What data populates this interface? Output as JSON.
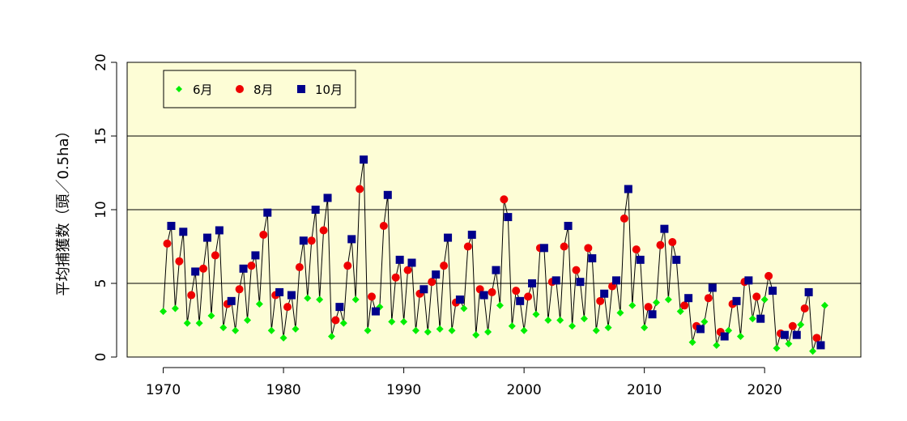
{
  "chart_data": {
    "type": "line",
    "title": "",
    "xlabel": "",
    "ylabel": "平均捕獲数（頭／0.5ha）",
    "xlim": [
      1967,
      2028
    ],
    "ylim": [
      0,
      20
    ],
    "xticks": [
      1970,
      1980,
      1990,
      2000,
      2010,
      2020
    ],
    "xtick_labels": [
      "1970",
      "1980",
      "1990",
      "2000",
      "2010",
      "2020"
    ],
    "yticks": [
      0,
      5,
      10,
      15,
      20
    ],
    "ytick_labels": [
      "0",
      "5",
      "10",
      "15",
      "20"
    ],
    "grid": "horizontal",
    "legend_position": "top-left",
    "colors": {
      "plot_background": "#fdfdd6",
      "june": "#00ee00",
      "august": "#ee0000",
      "october": "#00008b",
      "line": "#000000"
    },
    "series": [
      {
        "name": "6月",
        "marker": "diamond",
        "x": [
          1970,
          1971,
          1972,
          1973,
          1974,
          1975,
          1976,
          1977,
          1978,
          1979,
          1980,
          1981,
          1982,
          1983,
          1984,
          1985,
          1986,
          1987,
          1988,
          1989,
          1990,
          1991,
          1992,
          1993,
          1994,
          1995,
          1996,
          1997,
          1998,
          1999,
          2000,
          2001,
          2002,
          2003,
          2004,
          2005,
          2006,
          2007,
          2008,
          2009,
          2010,
          2011,
          2012,
          2013,
          2014,
          2015,
          2016,
          2017,
          2018,
          2019,
          2020,
          2021,
          2022,
          2023,
          2024,
          2025
        ],
        "values": [
          3.1,
          3.3,
          2.3,
          2.3,
          2.8,
          2.0,
          1.8,
          2.5,
          3.6,
          1.8,
          1.3,
          1.9,
          4.0,
          3.9,
          1.4,
          2.3,
          3.9,
          1.8,
          3.4,
          2.4,
          2.4,
          1.8,
          1.7,
          1.9,
          1.8,
          3.3,
          1.5,
          1.7,
          3.5,
          2.1,
          1.8,
          2.9,
          2.5,
          2.5,
          2.1,
          2.6,
          1.8,
          2.0,
          3.0,
          3.5,
          2.0,
          3.7,
          3.9,
          3.1,
          1.0,
          2.4,
          0.8,
          1.8,
          1.4,
          2.6,
          3.9,
          0.6,
          0.9,
          2.2,
          0.4,
          3.5
        ]
      },
      {
        "name": "8月",
        "marker": "circle",
        "x": [
          1970,
          1971,
          1972,
          1973,
          1974,
          1975,
          1976,
          1977,
          1978,
          1979,
          1980,
          1981,
          1982,
          1983,
          1984,
          1985,
          1986,
          1987,
          1988,
          1989,
          1990,
          1991,
          1992,
          1993,
          1994,
          1995,
          1996,
          1997,
          1998,
          1999,
          2000,
          2001,
          2002,
          2003,
          2004,
          2005,
          2006,
          2007,
          2008,
          2009,
          2010,
          2011,
          2012,
          2013,
          2014,
          2015,
          2016,
          2017,
          2018,
          2019,
          2020,
          2021,
          2022,
          2023,
          2024
        ],
        "values": [
          7.7,
          6.5,
          4.2,
          6.0,
          6.9,
          3.6,
          4.6,
          6.2,
          8.3,
          4.2,
          3.4,
          6.1,
          7.9,
          8.6,
          2.5,
          6.2,
          11.4,
          4.1,
          8.9,
          5.4,
          5.9,
          4.3,
          5.1,
          6.2,
          3.7,
          7.5,
          4.6,
          4.4,
          10.7,
          4.5,
          4.1,
          7.4,
          5.1,
          7.5,
          5.9,
          7.4,
          3.8,
          4.8,
          9.4,
          7.3,
          3.4,
          7.6,
          7.8,
          3.5,
          2.1,
          4.0,
          1.7,
          3.6,
          5.1,
          4.1,
          5.5,
          1.6,
          2.1,
          3.3,
          1.3
        ]
      },
      {
        "name": "10月",
        "marker": "square",
        "x": [
          1970,
          1971,
          1972,
          1973,
          1974,
          1975,
          1976,
          1977,
          1978,
          1979,
          1980,
          1981,
          1982,
          1983,
          1984,
          1985,
          1986,
          1987,
          1988,
          1989,
          1990,
          1991,
          1992,
          1993,
          1994,
          1995,
          1996,
          1997,
          1998,
          1999,
          2000,
          2001,
          2002,
          2003,
          2004,
          2005,
          2006,
          2007,
          2008,
          2009,
          2010,
          2011,
          2012,
          2013,
          2014,
          2015,
          2016,
          2017,
          2018,
          2019,
          2020,
          2021,
          2022,
          2023,
          2024
        ],
        "values": [
          8.9,
          8.5,
          5.8,
          8.1,
          8.6,
          3.8,
          6.0,
          6.9,
          9.8,
          4.4,
          4.2,
          7.9,
          10.0,
          10.8,
          3.4,
          8.0,
          13.4,
          3.1,
          11.0,
          6.6,
          6.4,
          4.6,
          5.6,
          8.1,
          3.9,
          8.3,
          4.2,
          5.9,
          9.5,
          3.8,
          5.0,
          7.4,
          5.2,
          8.9,
          5.1,
          6.7,
          4.3,
          5.2,
          11.4,
          6.6,
          2.9,
          8.7,
          6.6,
          4.0,
          1.9,
          4.7,
          1.4,
          3.8,
          5.2,
          2.6,
          4.5,
          1.5,
          1.5,
          4.4,
          0.8
        ]
      }
    ]
  }
}
